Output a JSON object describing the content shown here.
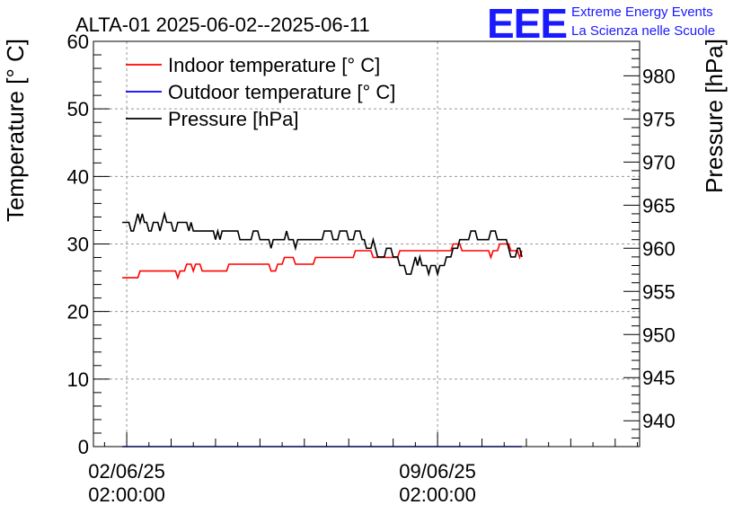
{
  "chart_data": {
    "type": "line",
    "title": "ALTA-01 2025-06-02--2025-06-11",
    "ylabel_left": "Temperature [° C]",
    "ylabel_right": "Pressure [hPa]",
    "ylim_left": [
      0,
      60
    ],
    "ylim_right": [
      937,
      984
    ],
    "xlim_days": [
      -0.75,
      11.55
    ],
    "yticks_left": [
      0,
      10,
      20,
      30,
      40,
      50,
      60
    ],
    "yticks_right": [
      940,
      945,
      950,
      955,
      960,
      965,
      970,
      975,
      980
    ],
    "xtick_labels": [
      {
        "day": 0,
        "line1": "02/06/25",
        "line2": "02:00:00"
      },
      {
        "day": 7,
        "line1": "09/06/25",
        "line2": "02:00:00"
      }
    ],
    "grid": true,
    "legend_position": "top-left",
    "series": [
      {
        "name": "Indoor temperature [° C]",
        "color": "#ff0000",
        "axis": "left",
        "points": [
          [
            -0.1,
            25
          ],
          [
            0.25,
            25
          ],
          [
            0.3,
            26
          ],
          [
            1.1,
            26
          ],
          [
            1.15,
            25
          ],
          [
            1.2,
            26
          ],
          [
            1.3,
            26
          ],
          [
            1.35,
            27
          ],
          [
            1.45,
            27
          ],
          [
            1.5,
            26
          ],
          [
            1.55,
            27
          ],
          [
            1.65,
            27
          ],
          [
            1.7,
            26
          ],
          [
            2.25,
            26
          ],
          [
            2.3,
            27
          ],
          [
            3.2,
            27
          ],
          [
            3.25,
            26
          ],
          [
            3.35,
            26
          ],
          [
            3.4,
            27
          ],
          [
            3.5,
            27
          ],
          [
            3.55,
            28
          ],
          [
            3.75,
            28
          ],
          [
            3.8,
            27
          ],
          [
            4.2,
            27
          ],
          [
            4.25,
            28
          ],
          [
            5.1,
            28
          ],
          [
            5.15,
            29
          ],
          [
            5.5,
            29
          ],
          [
            5.55,
            28
          ],
          [
            6.1,
            28
          ],
          [
            6.15,
            29
          ],
          [
            7.3,
            29
          ],
          [
            7.35,
            30
          ],
          [
            7.5,
            30
          ],
          [
            7.55,
            29
          ],
          [
            8.15,
            29
          ],
          [
            8.2,
            28
          ],
          [
            8.25,
            29
          ],
          [
            8.35,
            29
          ],
          [
            8.4,
            30
          ],
          [
            8.6,
            30
          ],
          [
            8.65,
            29
          ],
          [
            8.8,
            29
          ],
          [
            8.85,
            28
          ],
          [
            8.9,
            29
          ]
        ]
      },
      {
        "name": "Outdoor temperature [° C]",
        "color": "#0000ff",
        "axis": "left",
        "points": [
          [
            -0.1,
            0
          ],
          [
            8.9,
            0
          ]
        ]
      },
      {
        "name": "Pressure [hPa]",
        "color": "#000000",
        "axis": "right",
        "points": [
          [
            -0.1,
            963
          ],
          [
            0.05,
            963
          ],
          [
            0.1,
            962
          ],
          [
            0.15,
            962
          ],
          [
            0.2,
            963
          ],
          [
            0.25,
            964
          ],
          [
            0.3,
            963
          ],
          [
            0.35,
            964
          ],
          [
            0.4,
            963
          ],
          [
            0.45,
            963
          ],
          [
            0.5,
            962
          ],
          [
            0.55,
            962
          ],
          [
            0.6,
            963
          ],
          [
            0.7,
            963
          ],
          [
            0.75,
            962
          ],
          [
            0.8,
            963
          ],
          [
            0.85,
            964
          ],
          [
            0.9,
            963
          ],
          [
            1.0,
            963
          ],
          [
            1.05,
            962
          ],
          [
            1.1,
            962
          ],
          [
            1.15,
            963
          ],
          [
            1.35,
            963
          ],
          [
            1.4,
            962
          ],
          [
            1.45,
            963
          ],
          [
            1.5,
            962
          ],
          [
            1.95,
            962
          ],
          [
            2.0,
            961
          ],
          [
            2.05,
            962
          ],
          [
            2.1,
            961
          ],
          [
            2.15,
            962
          ],
          [
            2.5,
            962
          ],
          [
            2.55,
            961
          ],
          [
            2.8,
            961
          ],
          [
            2.85,
            962
          ],
          [
            2.95,
            962
          ],
          [
            3.0,
            961
          ],
          [
            3.2,
            961
          ],
          [
            3.25,
            960
          ],
          [
            3.3,
            961
          ],
          [
            3.55,
            961
          ],
          [
            3.6,
            962
          ],
          [
            3.65,
            961
          ],
          [
            3.75,
            961
          ],
          [
            3.8,
            960
          ],
          [
            3.85,
            961
          ],
          [
            4.4,
            961
          ],
          [
            4.45,
            962
          ],
          [
            4.6,
            962
          ],
          [
            4.65,
            961
          ],
          [
            4.75,
            961
          ],
          [
            4.8,
            962
          ],
          [
            4.95,
            962
          ],
          [
            5.0,
            961
          ],
          [
            5.1,
            961
          ],
          [
            5.15,
            962
          ],
          [
            5.25,
            962
          ],
          [
            5.3,
            961
          ],
          [
            5.35,
            961
          ],
          [
            5.4,
            960
          ],
          [
            5.5,
            960
          ],
          [
            5.55,
            961
          ],
          [
            5.6,
            960
          ],
          [
            5.65,
            959
          ],
          [
            5.8,
            959
          ],
          [
            5.85,
            960
          ],
          [
            5.95,
            960
          ],
          [
            6.0,
            959
          ],
          [
            6.1,
            959
          ],
          [
            6.15,
            958
          ],
          [
            6.25,
            958
          ],
          [
            6.3,
            957
          ],
          [
            6.4,
            957
          ],
          [
            6.45,
            958
          ],
          [
            6.5,
            959
          ],
          [
            6.55,
            958
          ],
          [
            6.6,
            959
          ],
          [
            6.65,
            958
          ],
          [
            6.75,
            958
          ],
          [
            6.8,
            957
          ],
          [
            6.85,
            958
          ],
          [
            6.95,
            958
          ],
          [
            7.0,
            957
          ],
          [
            7.05,
            958
          ],
          [
            7.15,
            958
          ],
          [
            7.2,
            959
          ],
          [
            7.3,
            959
          ],
          [
            7.35,
            960
          ],
          [
            7.45,
            960
          ],
          [
            7.5,
            961
          ],
          [
            7.7,
            961
          ],
          [
            7.75,
            962
          ],
          [
            7.85,
            962
          ],
          [
            7.9,
            961
          ],
          [
            8.15,
            961
          ],
          [
            8.2,
            962
          ],
          [
            8.3,
            962
          ],
          [
            8.35,
            961
          ],
          [
            8.55,
            961
          ],
          [
            8.6,
            960
          ],
          [
            8.65,
            959
          ],
          [
            8.75,
            959
          ],
          [
            8.8,
            960
          ],
          [
            8.85,
            960
          ],
          [
            8.9,
            959
          ]
        ]
      }
    ]
  },
  "logo": {
    "mark": "EEE",
    "line1": "Extreme Energy Events",
    "line2": "La Scienza nelle Scuole"
  }
}
